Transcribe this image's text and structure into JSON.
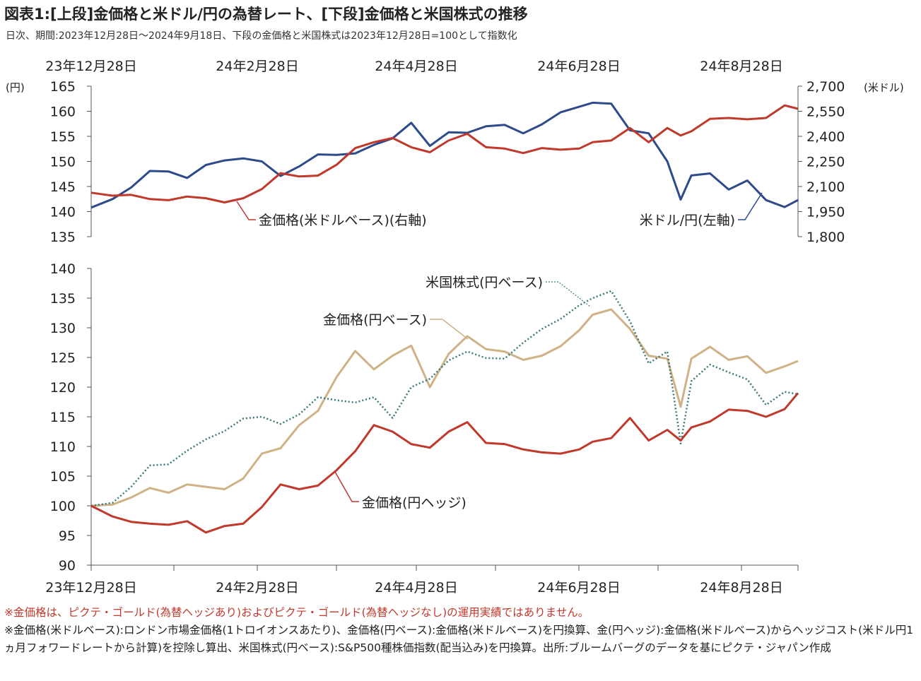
{
  "title": "図表1:[上段]金価格と米ドル/円の為替レート、[下段]金価格と米国株式の推移",
  "subtitle": "日次、期間:2023年12月28日〜2024年9月18日、下段の金価格と米国株式は2023年12月28日=100として指数化",
  "colors": {
    "blue": "#2d4a8a",
    "red": "#c0392b",
    "tan": "#cfb285",
    "teal": "#3a7a7a",
    "axis": "#555555"
  },
  "x_tick_labels": [
    "23年12月28日",
    "24年2月28日",
    "24年4月28日",
    "24年6月28日",
    "24年8月28日"
  ],
  "chart_data": [
    {
      "type": "line",
      "x_range": [
        "2023-12-28",
        "2024-09-18"
      ],
      "x_tick_labels": [
        "23年12月28日",
        "24年2月28日",
        "24年4月28日",
        "24年6月28日",
        "24年8月28日"
      ],
      "left_axis": {
        "unit": "(円)",
        "ylim": [
          135,
          165
        ],
        "ticks": [
          "135",
          "140",
          "145",
          "150",
          "155",
          "160",
          "165"
        ]
      },
      "right_axis": {
        "unit": "(米ドル)",
        "ylim": [
          1800,
          2700
        ],
        "ticks": [
          "1,800",
          "1,950",
          "2,100",
          "2,250",
          "2,400",
          "2,550",
          "2,700"
        ]
      },
      "series": [
        {
          "name": "米ドル/円(左軸)",
          "axis": "left",
          "color": "#2d4a8a",
          "x": [
            "2023-12-28",
            "2024-01-05",
            "2024-01-12",
            "2024-01-19",
            "2024-01-26",
            "2024-02-02",
            "2024-02-09",
            "2024-02-16",
            "2024-02-23",
            "2024-03-01",
            "2024-03-08",
            "2024-03-15",
            "2024-03-22",
            "2024-03-29",
            "2024-04-05",
            "2024-04-12",
            "2024-04-19",
            "2024-04-26",
            "2024-05-03",
            "2024-05-10",
            "2024-05-17",
            "2024-05-24",
            "2024-05-31",
            "2024-06-07",
            "2024-06-14",
            "2024-06-21",
            "2024-06-28",
            "2024-07-03",
            "2024-07-10",
            "2024-07-17",
            "2024-07-24",
            "2024-07-31",
            "2024-08-05",
            "2024-08-09",
            "2024-08-16",
            "2024-08-23",
            "2024-08-30",
            "2024-09-06",
            "2024-09-13",
            "2024-09-18"
          ],
          "y": [
            140.8,
            142.5,
            144.8,
            148.1,
            148.0,
            146.7,
            149.3,
            150.2,
            150.6,
            150.0,
            147.1,
            149.0,
            151.4,
            151.3,
            151.6,
            153.3,
            154.6,
            157.7,
            153.1,
            155.8,
            155.7,
            157.0,
            157.3,
            155.6,
            157.4,
            159.8,
            160.9,
            161.7,
            161.5,
            156.2,
            155.6,
            150.0,
            142.4,
            147.2,
            147.6,
            144.4,
            146.2,
            142.3,
            140.9,
            142.3
          ]
        },
        {
          "name": "金価格(米ドルベース)(右軸)",
          "axis": "right",
          "color": "#c0392b",
          "x": [
            "2023-12-28",
            "2024-01-05",
            "2024-01-12",
            "2024-01-19",
            "2024-01-26",
            "2024-02-02",
            "2024-02-09",
            "2024-02-16",
            "2024-02-23",
            "2024-03-01",
            "2024-03-08",
            "2024-03-15",
            "2024-03-22",
            "2024-03-29",
            "2024-04-05",
            "2024-04-12",
            "2024-04-19",
            "2024-04-26",
            "2024-05-03",
            "2024-05-10",
            "2024-05-17",
            "2024-05-24",
            "2024-05-31",
            "2024-06-07",
            "2024-06-14",
            "2024-06-21",
            "2024-06-28",
            "2024-07-03",
            "2024-07-10",
            "2024-07-17",
            "2024-07-24",
            "2024-07-31",
            "2024-08-05",
            "2024-08-09",
            "2024-08-16",
            "2024-08-23",
            "2024-08-30",
            "2024-09-06",
            "2024-09-13",
            "2024-09-18"
          ],
          "y": [
            2063,
            2045,
            2050,
            2025,
            2018,
            2040,
            2030,
            2005,
            2030,
            2085,
            2180,
            2160,
            2165,
            2230,
            2330,
            2365,
            2390,
            2335,
            2305,
            2375,
            2415,
            2335,
            2327,
            2300,
            2330,
            2320,
            2327,
            2365,
            2375,
            2450,
            2365,
            2450,
            2405,
            2430,
            2505,
            2510,
            2502,
            2510,
            2585,
            2565
          ]
        }
      ],
      "annotations": [
        "金価格(米ドルベース)(右軸)",
        "米ドル/円(左軸)"
      ]
    },
    {
      "type": "line",
      "x_range": [
        "2023-12-28",
        "2024-09-18"
      ],
      "x_tick_labels": [
        "23年12月28日",
        "24年2月28日",
        "24年4月28日",
        "24年6月28日",
        "24年8月28日"
      ],
      "ylim": [
        90,
        140
      ],
      "y_ticks": [
        "90",
        "95",
        "100",
        "105",
        "110",
        "115",
        "120",
        "125",
        "130",
        "135",
        "140"
      ],
      "series": [
        {
          "name": "金価格(円ベース)",
          "color": "#cfb285",
          "style": "solid",
          "x": [
            "2023-12-28",
            "2024-01-05",
            "2024-01-12",
            "2024-01-19",
            "2024-01-26",
            "2024-02-02",
            "2024-02-09",
            "2024-02-16",
            "2024-02-23",
            "2024-03-01",
            "2024-03-08",
            "2024-03-15",
            "2024-03-22",
            "2024-03-29",
            "2024-04-05",
            "2024-04-12",
            "2024-04-19",
            "2024-04-26",
            "2024-05-03",
            "2024-05-10",
            "2024-05-17",
            "2024-05-24",
            "2024-05-31",
            "2024-06-07",
            "2024-06-14",
            "2024-06-21",
            "2024-06-28",
            "2024-07-03",
            "2024-07-10",
            "2024-07-17",
            "2024-07-24",
            "2024-07-31",
            "2024-08-05",
            "2024-08-09",
            "2024-08-16",
            "2024-08-23",
            "2024-08-30",
            "2024-09-06",
            "2024-09-13",
            "2024-09-18"
          ],
          "y": [
            100,
            100.2,
            101.4,
            103.0,
            102.2,
            103.6,
            103.2,
            102.8,
            104.6,
            108.8,
            109.7,
            113.6,
            116.0,
            121.7,
            126.1,
            123.0,
            125.3,
            127.0,
            120.0,
            125.6,
            128.6,
            126.4,
            126.0,
            124.6,
            125.3,
            126.9,
            129.6,
            132.2,
            133.1,
            129.8,
            125.3,
            124.8,
            116.7,
            124.8,
            126.8,
            124.6,
            125.2,
            122.4,
            123.5,
            124.4
          ]
        },
        {
          "name": "米国株式(円ベース)",
          "color": "#3a7a7a",
          "style": "dotted",
          "x": [
            "2023-12-28",
            "2024-01-05",
            "2024-01-12",
            "2024-01-19",
            "2024-01-26",
            "2024-02-02",
            "2024-02-09",
            "2024-02-16",
            "2024-02-23",
            "2024-03-01",
            "2024-03-08",
            "2024-03-15",
            "2024-03-22",
            "2024-03-29",
            "2024-04-05",
            "2024-04-12",
            "2024-04-19",
            "2024-04-26",
            "2024-05-03",
            "2024-05-10",
            "2024-05-17",
            "2024-05-24",
            "2024-05-31",
            "2024-06-07",
            "2024-06-14",
            "2024-06-21",
            "2024-06-28",
            "2024-07-03",
            "2024-07-10",
            "2024-07-17",
            "2024-07-24",
            "2024-07-31",
            "2024-08-05",
            "2024-08-09",
            "2024-08-16",
            "2024-08-23",
            "2024-08-30",
            "2024-09-06",
            "2024-09-13",
            "2024-09-18"
          ],
          "y": [
            100,
            100.5,
            103.2,
            106.8,
            107.0,
            109.3,
            111.2,
            112.6,
            114.7,
            115.0,
            113.8,
            115.4,
            118.3,
            117.8,
            117.4,
            118.3,
            114.8,
            120.0,
            121.4,
            124.5,
            126.0,
            124.9,
            124.8,
            127.5,
            129.8,
            131.5,
            133.8,
            135.0,
            136.2,
            131.1,
            124.0,
            126.0,
            110.5,
            121.0,
            123.8,
            122.5,
            121.3,
            117.0,
            119.2,
            118.8
          ]
        },
        {
          "name": "金価格(円ヘッジ)",
          "color": "#c0392b",
          "style": "solid",
          "x": [
            "2023-12-28",
            "2024-01-05",
            "2024-01-12",
            "2024-01-19",
            "2024-01-26",
            "2024-02-02",
            "2024-02-09",
            "2024-02-16",
            "2024-02-23",
            "2024-03-01",
            "2024-03-08",
            "2024-03-15",
            "2024-03-22",
            "2024-03-29",
            "2024-04-05",
            "2024-04-12",
            "2024-04-19",
            "2024-04-26",
            "2024-05-03",
            "2024-05-10",
            "2024-05-17",
            "2024-05-24",
            "2024-05-31",
            "2024-06-07",
            "2024-06-14",
            "2024-06-21",
            "2024-06-28",
            "2024-07-03",
            "2024-07-10",
            "2024-07-17",
            "2024-07-24",
            "2024-07-31",
            "2024-08-05",
            "2024-08-09",
            "2024-08-16",
            "2024-08-23",
            "2024-08-30",
            "2024-09-06",
            "2024-09-13",
            "2024-09-18"
          ],
          "y": [
            100,
            98.2,
            97.3,
            97.0,
            96.8,
            97.4,
            95.5,
            96.6,
            97.0,
            99.8,
            103.6,
            102.8,
            103.4,
            106.0,
            109.2,
            113.6,
            112.5,
            110.4,
            109.8,
            112.5,
            114.1,
            110.6,
            110.4,
            109.5,
            109.0,
            108.8,
            109.5,
            110.8,
            111.4,
            114.8,
            111.0,
            112.8,
            111.0,
            113.2,
            114.2,
            116.2,
            116.0,
            115.0,
            116.3,
            119.0
          ]
        }
      ],
      "annotations": [
        "米国株式(円ベース)",
        "金価格(円ベース)",
        "金価格(円ヘッジ)"
      ]
    }
  ],
  "notes": [
    "※金価格は、ピクテ・ゴールド(為替ヘッジあり)およびピクテ・ゴールド(為替ヘッジなし)の運用実績ではありません。",
    "※金価格(米ドルベース):ロンドン市場金価格(1トロイオンスあたり)、金価格(円ベース):金価格(米ドルベース)を円換算、金(円ヘッジ):金価格(米ドルベース)からヘッジコスト(米ドル円1ヵ月フォワードレートから計算)を控除し算出、米国株式(円ベース):S&P500種株価指数(配当込み)を円換算。出所:ブルームバーグのデータを基にピクテ・ジャパン作成"
  ]
}
